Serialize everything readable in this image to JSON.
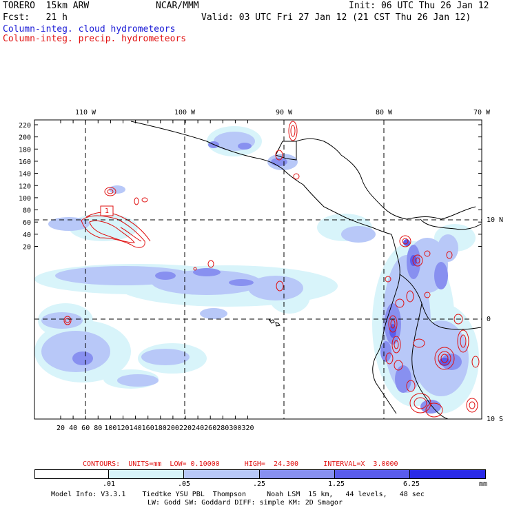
{
  "header": {
    "model": "TORERO  15km ARW",
    "org": "NCAR/MMM",
    "init": "Init: 06 UTC Thu 26 Jan 12",
    "fcst": "Fcst:   21 h",
    "valid": "Valid: 03 UTC Fri 27 Jan 12 (21 CST Thu 26 Jan 12)",
    "field_cloud": "Column-integ. cloud hydrometeors",
    "field_precip": "Column-integ. precip. hydrometeors",
    "color_cloud": "#1a1ad6",
    "color_precip": "#e01010"
  },
  "map": {
    "lon_labels": [
      "110 W",
      "100 W",
      "90 W",
      "80 W",
      "70 W"
    ],
    "lat_labels": [
      "10 N",
      "0",
      "10 S"
    ],
    "y_ticks": [
      "220",
      "200",
      "180",
      "160",
      "140",
      "120",
      "100",
      "80",
      "60",
      "40",
      "20"
    ],
    "x_ticks": [
      "20",
      "40",
      "60",
      "80",
      "100",
      "120",
      "140",
      "160",
      "180",
      "200",
      "220",
      "240",
      "260",
      "280",
      "300",
      "320"
    ],
    "marker_label": "1"
  },
  "contour_info": {
    "label": "CONTOURS:  UNITS=mm  LOW= 0.10000      HIGH=  24.300      INTERVAL=X  3.0000"
  },
  "colorbar": {
    "thresholds": [
      ".01",
      ".05",
      ".25",
      "1.25",
      "6.25"
    ],
    "unit": "mm",
    "colors": [
      "#ffffff",
      "#d8f4fa",
      "#b8c8f8",
      "#8890f0",
      "#5a5cec",
      "#2a2ae8"
    ]
  },
  "footer": {
    "line1": "Model Info: V3.3.1    Tiedtke YSU PBL  Thompson     Noah LSM  15 km,   44 levels,   48 sec",
    "line2": "LW: Godd SW: Goddard DIFF: simple KM: 2D Smagor"
  }
}
